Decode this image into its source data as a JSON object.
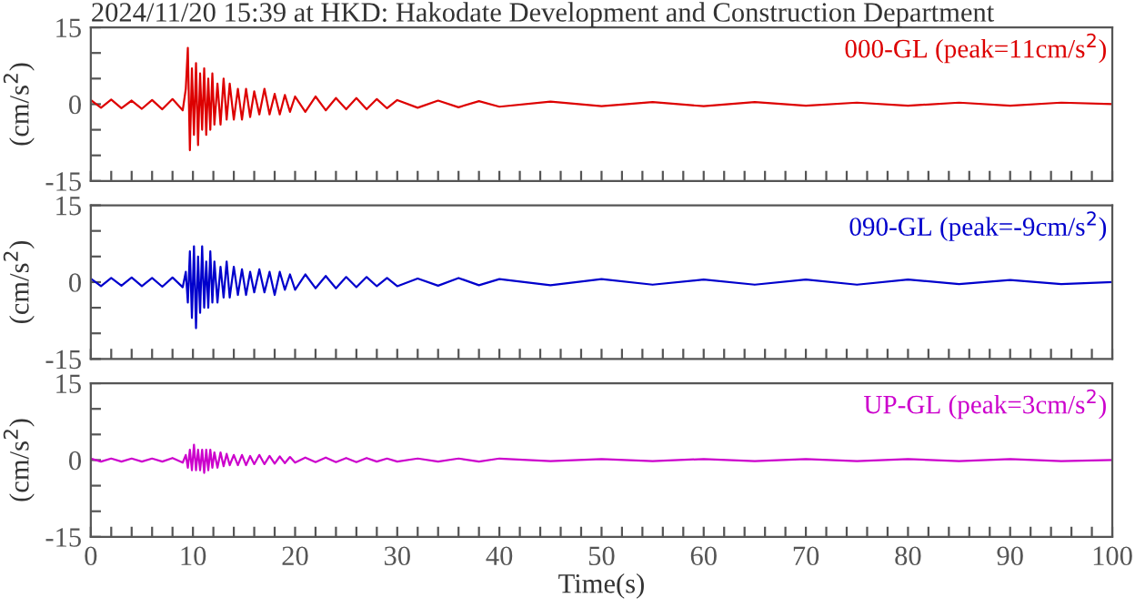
{
  "chart_data": [
    {
      "type": "line",
      "title": "2024/11/20 15:39 at HKD: Hakodate Development and Construction Department",
      "ylabel": "(cm/s$^{2}$)",
      "xlim": [
        0,
        100
      ],
      "ylim": [
        -15,
        15
      ],
      "tick_labels": "y",
      "grid": false,
      "legend": false,
      "xticks": [
        0,
        {
          "value": 2,
          "label": null
        },
        {
          "value": 4,
          "label": null
        },
        {
          "value": 6,
          "label": null
        },
        {
          "value": 8,
          "label": null
        },
        10,
        {
          "value": 12,
          "label": null
        },
        {
          "value": 14,
          "label": null
        },
        {
          "value": 16,
          "label": null
        },
        {
          "value": 18,
          "label": null
        },
        20,
        {
          "value": 22,
          "label": null
        },
        {
          "value": 24,
          "label": null
        },
        {
          "value": 26,
          "label": null
        },
        {
          "value": 28,
          "label": null
        },
        30,
        {
          "value": 32,
          "label": null
        },
        {
          "value": 34,
          "label": null
        },
        {
          "value": 36,
          "label": null
        },
        {
          "value": 38,
          "label": null
        },
        40,
        {
          "value": 42,
          "label": null
        },
        {
          "value": 44,
          "label": null
        },
        {
          "value": 46,
          "label": null
        },
        {
          "value": 48,
          "label": null
        },
        50,
        {
          "value": 52,
          "label": null
        },
        {
          "value": 54,
          "label": null
        },
        {
          "value": 56,
          "label": null
        },
        {
          "value": 58,
          "label": null
        },
        60,
        {
          "value": 62,
          "label": null
        },
        {
          "value": 64,
          "label": null
        },
        {
          "value": 66,
          "label": null
        },
        {
          "value": 68,
          "label": null
        },
        70,
        {
          "value": 72,
          "label": null
        },
        {
          "value": 74,
          "label": null
        },
        {
          "value": 76,
          "label": null
        },
        {
          "value": 78,
          "label": null
        },
        80,
        {
          "value": 82,
          "label": null
        },
        {
          "value": 84,
          "label": null
        },
        {
          "value": 86,
          "label": null
        },
        {
          "value": 88,
          "label": null
        },
        90,
        {
          "value": 92,
          "label": null
        },
        {
          "value": 94,
          "label": null
        },
        {
          "value": 96,
          "label": null
        },
        {
          "value": 98,
          "label": null
        },
        100
      ],
      "yticks": [
        -15,
        {
          "value": -10,
          "label": null
        },
        {
          "value": -5,
          "label": null
        },
        0,
        {
          "value": 5,
          "label": null
        },
        {
          "value": 10,
          "label": null
        },
        15
      ],
      "series": [
        {
          "name": "000-GL (peak=11cm/s$^{2}$)",
          "color": "#dd0000",
          "x": [
            0,
            1,
            2,
            3,
            4,
            5,
            6,
            7,
            8,
            9,
            9.3,
            9.5,
            9.7,
            9.9,
            10.1,
            10.3,
            10.5,
            10.7,
            10.9,
            11.1,
            11.3,
            11.5,
            11.7,
            11.9,
            12.1,
            12.4,
            12.7,
            13,
            13.3,
            13.6,
            14,
            14.4,
            14.8,
            15.2,
            15.6,
            16,
            16.5,
            17,
            17.5,
            18,
            18.5,
            19,
            19.5,
            20,
            21,
            22,
            23,
            24,
            25,
            26,
            27,
            28,
            29,
            30,
            32,
            34,
            36,
            38,
            40,
            45,
            50,
            55,
            60,
            65,
            70,
            75,
            80,
            85,
            90,
            95,
            100
          ],
          "values": [
            0.8,
            -0.7,
            0.9,
            -0.8,
            0.7,
            -0.9,
            0.8,
            -1,
            1,
            -1.2,
            3,
            11,
            -9,
            7,
            -6,
            8,
            -8,
            6,
            -5,
            7,
            -6,
            5,
            -5,
            6,
            -4,
            4,
            -4,
            5,
            -3,
            4,
            -3,
            3,
            -3,
            3,
            -2.5,
            2.5,
            -2,
            3,
            -2,
            2,
            -2,
            1.8,
            -1.5,
            1.5,
            -1.5,
            1.5,
            -1.2,
            1.2,
            -1,
            1.2,
            -1,
            1,
            -0.8,
            0.8,
            -0.7,
            0.7,
            -0.6,
            0.6,
            -0.5,
            0.5,
            -0.4,
            0.4,
            -0.4,
            0.4,
            -0.3,
            0.3,
            -0.3,
            0.3,
            -0.3,
            0.3,
            0
          ]
        }
      ]
    },
    {
      "type": "line",
      "ylabel": "(cm/s$^{2}$)",
      "xlim": [
        0,
        100
      ],
      "ylim": [
        -15,
        15
      ],
      "tick_labels": "y",
      "grid": false,
      "legend": false,
      "xticks": [
        0,
        {
          "value": 2,
          "label": null
        },
        {
          "value": 4,
          "label": null
        },
        {
          "value": 6,
          "label": null
        },
        {
          "value": 8,
          "label": null
        },
        10,
        {
          "value": 12,
          "label": null
        },
        {
          "value": 14,
          "label": null
        },
        {
          "value": 16,
          "label": null
        },
        {
          "value": 18,
          "label": null
        },
        20,
        {
          "value": 22,
          "label": null
        },
        {
          "value": 24,
          "label": null
        },
        {
          "value": 26,
          "label": null
        },
        {
          "value": 28,
          "label": null
        },
        30,
        {
          "value": 32,
          "label": null
        },
        {
          "value": 34,
          "label": null
        },
        {
          "value": 36,
          "label": null
        },
        {
          "value": 38,
          "label": null
        },
        40,
        {
          "value": 42,
          "label": null
        },
        {
          "value": 44,
          "label": null
        },
        {
          "value": 46,
          "label": null
        },
        {
          "value": 48,
          "label": null
        },
        50,
        {
          "value": 52,
          "label": null
        },
        {
          "value": 54,
          "label": null
        },
        {
          "value": 56,
          "label": null
        },
        {
          "value": 58,
          "label": null
        },
        60,
        {
          "value": 62,
          "label": null
        },
        {
          "value": 64,
          "label": null
        },
        {
          "value": 66,
          "label": null
        },
        {
          "value": 68,
          "label": null
        },
        70,
        {
          "value": 72,
          "label": null
        },
        {
          "value": 74,
          "label": null
        },
        {
          "value": 76,
          "label": null
        },
        {
          "value": 78,
          "label": null
        },
        80,
        {
          "value": 82,
          "label": null
        },
        {
          "value": 84,
          "label": null
        },
        {
          "value": 86,
          "label": null
        },
        {
          "value": 88,
          "label": null
        },
        90,
        {
          "value": 92,
          "label": null
        },
        {
          "value": 94,
          "label": null
        },
        {
          "value": 96,
          "label": null
        },
        {
          "value": 98,
          "label": null
        },
        100
      ],
      "yticks": [
        -15,
        {
          "value": -10,
          "label": null
        },
        {
          "value": -5,
          "label": null
        },
        0,
        {
          "value": 5,
          "label": null
        },
        {
          "value": 10,
          "label": null
        },
        15
      ],
      "series": [
        {
          "name": "090-GL (peak=-9cm/s$^{2}$)",
          "color": "#0000cc",
          "x": [
            0,
            1,
            2,
            3,
            4,
            5,
            6,
            7,
            8,
            9,
            9.3,
            9.5,
            9.7,
            9.9,
            10.1,
            10.3,
            10.5,
            10.7,
            10.9,
            11.1,
            11.3,
            11.5,
            11.7,
            11.9,
            12.1,
            12.4,
            12.7,
            13,
            13.3,
            13.6,
            14,
            14.4,
            14.8,
            15.2,
            15.6,
            16,
            16.5,
            17,
            17.5,
            18,
            18.5,
            19,
            19.5,
            20,
            21,
            22,
            23,
            24,
            25,
            26,
            27,
            28,
            29,
            30,
            32,
            34,
            36,
            38,
            40,
            45,
            50,
            55,
            60,
            65,
            70,
            75,
            80,
            85,
            90,
            95,
            100
          ],
          "values": [
            0.7,
            -0.8,
            0.8,
            -0.7,
            0.9,
            -0.8,
            0.8,
            -0.9,
            0.9,
            -1,
            2,
            -4,
            6,
            -7,
            7,
            -9,
            5,
            -6,
            7,
            -5,
            4,
            -5,
            6,
            -4,
            4,
            -4,
            3,
            -3,
            4,
            -3,
            3,
            -2.5,
            2.5,
            -2.5,
            2,
            -2,
            2.5,
            -2,
            2,
            -2.5,
            2,
            -1.5,
            1.5,
            -1.5,
            1.5,
            -1.2,
            1.2,
            -1.2,
            1,
            -1,
            1,
            -0.8,
            0.8,
            -0.8,
            0.7,
            -0.7,
            0.8,
            -0.6,
            0.6,
            -0.6,
            0.6,
            -0.5,
            0.5,
            -0.5,
            0.5,
            -0.5,
            0.5,
            -0.4,
            0.4,
            -0.4,
            0
          ]
        }
      ]
    },
    {
      "type": "line",
      "ylabel": "(cm/s$^{2}$)",
      "xlabel": "Time(s)",
      "xlim": [
        0,
        100
      ],
      "ylim": [
        -15,
        15
      ],
      "grid": false,
      "legend": false,
      "xticks": [
        0,
        {
          "value": 2,
          "label": null
        },
        {
          "value": 4,
          "label": null
        },
        {
          "value": 6,
          "label": null
        },
        {
          "value": 8,
          "label": null
        },
        10,
        {
          "value": 12,
          "label": null
        },
        {
          "value": 14,
          "label": null
        },
        {
          "value": 16,
          "label": null
        },
        {
          "value": 18,
          "label": null
        },
        20,
        {
          "value": 22,
          "label": null
        },
        {
          "value": 24,
          "label": null
        },
        {
          "value": 26,
          "label": null
        },
        {
          "value": 28,
          "label": null
        },
        30,
        {
          "value": 32,
          "label": null
        },
        {
          "value": 34,
          "label": null
        },
        {
          "value": 36,
          "label": null
        },
        {
          "value": 38,
          "label": null
        },
        40,
        {
          "value": 42,
          "label": null
        },
        {
          "value": 44,
          "label": null
        },
        {
          "value": 46,
          "label": null
        },
        {
          "value": 48,
          "label": null
        },
        50,
        {
          "value": 52,
          "label": null
        },
        {
          "value": 54,
          "label": null
        },
        {
          "value": 56,
          "label": null
        },
        {
          "value": 58,
          "label": null
        },
        60,
        {
          "value": 62,
          "label": null
        },
        {
          "value": 64,
          "label": null
        },
        {
          "value": 66,
          "label": null
        },
        {
          "value": 68,
          "label": null
        },
        70,
        {
          "value": 72,
          "label": null
        },
        {
          "value": 74,
          "label": null
        },
        {
          "value": 76,
          "label": null
        },
        {
          "value": 78,
          "label": null
        },
        80,
        {
          "value": 82,
          "label": null
        },
        {
          "value": 84,
          "label": null
        },
        {
          "value": 86,
          "label": null
        },
        {
          "value": 88,
          "label": null
        },
        90,
        {
          "value": 92,
          "label": null
        },
        {
          "value": 94,
          "label": null
        },
        {
          "value": 96,
          "label": null
        },
        {
          "value": 98,
          "label": null
        },
        100
      ],
      "yticks": [
        -15,
        {
          "value": -10,
          "label": null
        },
        {
          "value": -5,
          "label": null
        },
        0,
        {
          "value": 5,
          "label": null
        },
        {
          "value": 10,
          "label": null
        },
        15
      ],
      "series": [
        {
          "name": "UP-GL (peak=3cm/s$^{2}$)",
          "color": "#cc00cc",
          "x": [
            0,
            1,
            2,
            3,
            4,
            5,
            6,
            7,
            8,
            9,
            9.3,
            9.5,
            9.7,
            9.9,
            10.1,
            10.3,
            10.5,
            10.7,
            10.9,
            11.1,
            11.3,
            11.5,
            11.7,
            11.9,
            12.1,
            12.4,
            12.7,
            13,
            13.3,
            13.6,
            14,
            14.4,
            14.8,
            15.2,
            15.6,
            16,
            16.5,
            17,
            17.5,
            18,
            18.5,
            19,
            19.5,
            20,
            21,
            22,
            23,
            24,
            25,
            26,
            27,
            28,
            29,
            30,
            32,
            34,
            36,
            38,
            40,
            45,
            50,
            55,
            60,
            65,
            70,
            75,
            80,
            85,
            90,
            95,
            100
          ],
          "values": [
            0.3,
            -0.3,
            0.3,
            -0.3,
            0.3,
            -0.3,
            0.3,
            -0.3,
            0.4,
            -0.5,
            1,
            -1.5,
            2,
            -2,
            3,
            -2,
            2,
            -2,
            2,
            -2.5,
            2,
            -2,
            2,
            -1.5,
            1.5,
            -1.5,
            1.5,
            -1.2,
            1.2,
            -1,
            1,
            -1,
            1,
            -1,
            0.8,
            -0.8,
            1,
            -0.8,
            0.8,
            -0.7,
            0.7,
            -0.6,
            0.6,
            -0.5,
            0.5,
            -0.4,
            0.5,
            -0.4,
            0.4,
            -0.4,
            0.4,
            -0.3,
            0.3,
            -0.3,
            0.3,
            -0.3,
            0.3,
            -0.3,
            0.3,
            -0.2,
            0.2,
            -0.2,
            0.2,
            -0.2,
            0.2,
            -0.2,
            0.2,
            -0.2,
            0.2,
            -0.2,
            0
          ]
        }
      ]
    }
  ]
}
